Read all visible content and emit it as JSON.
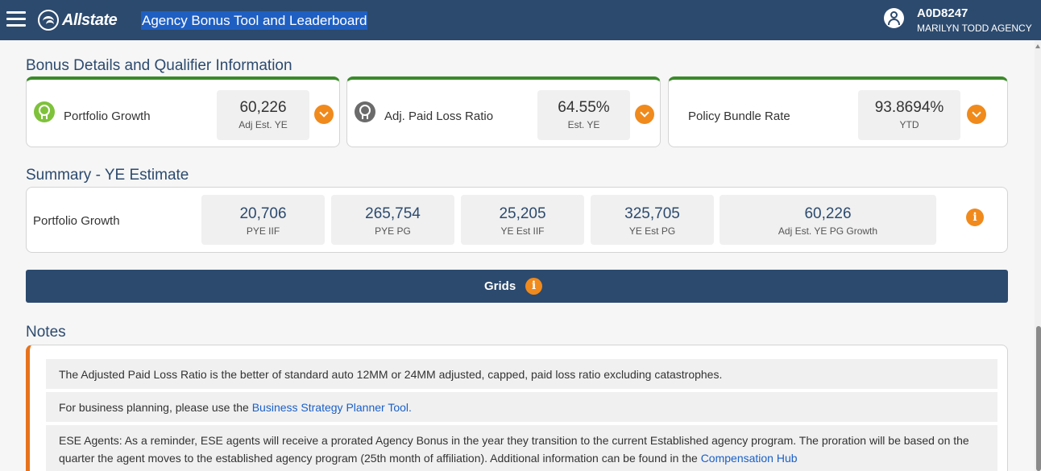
{
  "header": {
    "menu_icon": "hamburger-icon",
    "brand": "Allstate",
    "app_title": "Agency Bonus Tool and Leaderboard",
    "user_icon": "user-avatar-icon",
    "user_id": "A0D8247",
    "agency_name": "MARILYN TODD AGENCY",
    "colors": {
      "bar": "#2c4a6e",
      "title_highlight": "#1f5fc2"
    }
  },
  "bonus_details": {
    "heading": "Bonus Details and Qualifier Information",
    "cards": [
      {
        "label": "Portfolio Growth",
        "value": "60,226",
        "sub": "Adj Est. YE",
        "icon": "award-ribbon-icon",
        "icon_color": "#7ec23b"
      },
      {
        "label": "Adj. Paid Loss Ratio",
        "value": "64.55%",
        "sub": "Est. YE",
        "icon": "award-ribbon-icon",
        "icon_color": "#6b6b6b"
      },
      {
        "label": "Policy Bundle Rate",
        "value": "93.8694%",
        "sub": "YTD"
      }
    ]
  },
  "summary": {
    "heading": "Summary - YE Estimate",
    "row_label": "Portfolio Growth",
    "items": [
      {
        "value": "20,706",
        "sub": "PYE IIF"
      },
      {
        "value": "265,754",
        "sub": "PYE PG"
      },
      {
        "value": "25,205",
        "sub": "YE Est IIF"
      },
      {
        "value": "325,705",
        "sub": "YE Est PG"
      },
      {
        "value": "60,226",
        "sub": "Adj Est. YE PG Growth"
      }
    ],
    "info_glyph": "i"
  },
  "grids": {
    "label": "Grids",
    "info_glyph": "i"
  },
  "notes": {
    "heading": "Notes",
    "items": [
      {
        "text": "The Adjusted Paid Loss Ratio is the better of standard auto 12MM or 24MM adjusted, capped, paid loss ratio excluding catastrophes."
      },
      {
        "text": "For business planning, please use the ",
        "link": "Business Strategy Planner Tool."
      },
      {
        "text": "ESE Agents: As a reminder, ESE agents will receive a prorated Agency Bonus in the year they transition to the current Established agency program. The proration will be based on the quarter the agent moves to the established agency program (25th month of affiliation). Additional information can be found in the ",
        "link": "Compensation Hub"
      }
    ]
  },
  "colors": {
    "accent_orange": "#f08a1c",
    "card_top_green": "#3b8a2a",
    "notes_border": "#e8721c"
  }
}
